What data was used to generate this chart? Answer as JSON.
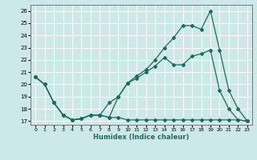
{
  "xlabel": "Humidex (Indice chaleur)",
  "bg_color": "#cce8e8",
  "grid_color": "#ffffff",
  "line_color": "#1e6b5e",
  "xlim": [
    -0.5,
    23.5
  ],
  "ylim": [
    16.7,
    26.5
  ],
  "yticks": [
    17,
    18,
    19,
    20,
    21,
    22,
    23,
    24,
    25,
    26
  ],
  "xticks": [
    0,
    1,
    2,
    3,
    4,
    5,
    6,
    7,
    8,
    9,
    10,
    11,
    12,
    13,
    14,
    15,
    16,
    17,
    18,
    19,
    20,
    21,
    22,
    23
  ],
  "series1_x": [
    0,
    1,
    2,
    3,
    4,
    5,
    6,
    7,
    8,
    9,
    10,
    11,
    12,
    13,
    14,
    15,
    16,
    17,
    18,
    19,
    20,
    21,
    22,
    23
  ],
  "series1_y": [
    20.6,
    20.0,
    18.5,
    17.5,
    17.1,
    17.2,
    17.5,
    17.5,
    17.3,
    17.3,
    17.1,
    17.1,
    17.1,
    17.1,
    17.1,
    17.1,
    17.1,
    17.1,
    17.1,
    17.1,
    17.1,
    17.1,
    17.1,
    17.0
  ],
  "series2_x": [
    0,
    1,
    2,
    3,
    4,
    5,
    6,
    7,
    8,
    9,
    10,
    11,
    12,
    13,
    14,
    15,
    16,
    17,
    18,
    19,
    20,
    21,
    22,
    23
  ],
  "series2_y": [
    20.6,
    20.0,
    18.5,
    17.5,
    17.1,
    17.2,
    17.5,
    17.5,
    17.3,
    19.0,
    20.1,
    20.5,
    21.0,
    21.5,
    22.2,
    21.6,
    21.6,
    22.3,
    22.5,
    22.8,
    19.5,
    18.0,
    17.1,
    17.0
  ],
  "series3_x": [
    0,
    1,
    2,
    3,
    4,
    5,
    6,
    7,
    8,
    9,
    10,
    11,
    12,
    13,
    14,
    15,
    16,
    17,
    18,
    19,
    20,
    21,
    22,
    23
  ],
  "series3_y": [
    20.6,
    20.0,
    18.5,
    17.5,
    17.1,
    17.2,
    17.5,
    17.5,
    18.5,
    19.0,
    20.1,
    20.7,
    21.2,
    22.0,
    23.0,
    23.8,
    24.8,
    24.8,
    24.5,
    26.0,
    22.8,
    19.5,
    18.0,
    17.0
  ]
}
